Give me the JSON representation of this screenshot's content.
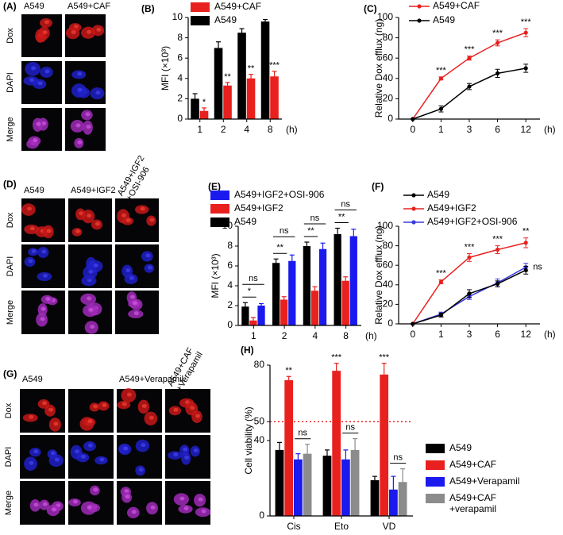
{
  "image_panels": [
    {
      "panel": "(A)",
      "columns": [
        "A549",
        "A549+CAF"
      ],
      "rows": [
        "Dox",
        "DAPI",
        "Merge"
      ]
    },
    {
      "panel": "(D)",
      "columns": [
        "A549",
        "A549+IGF2",
        "A549+IGF2\n+OSI-906"
      ],
      "rows": [
        "Dox",
        "DAPI",
        "Merge"
      ]
    },
    {
      "panel": "(G)",
      "columns": [
        "A549",
        null,
        "A549+Verapamil",
        "A549+CAF\n+Verapamil"
      ],
      "rows": [
        "Dox",
        "DAPI",
        "Merge"
      ]
    }
  ],
  "chart_data": [
    {
      "type": "bar",
      "panel": "(B)",
      "ylabel": "MFI (×10³)",
      "xlabel": "(h)",
      "categories": [
        "1",
        "2",
        "4",
        "8"
      ],
      "ylim": [
        0,
        10
      ],
      "yticks": [
        0,
        2,
        4,
        6,
        8,
        10
      ],
      "series": [
        {
          "name": "A549",
          "color": "#000000",
          "values": [
            2.0,
            7.0,
            8.5,
            9.6
          ],
          "errors": [
            0.5,
            0.6,
            0.4,
            0.2
          ]
        },
        {
          "name": "A549+CAF",
          "color": "#e8211f",
          "values": [
            0.8,
            3.3,
            4.0,
            4.2
          ],
          "errors": [
            0.3,
            0.3,
            0.4,
            0.5
          ],
          "significance": [
            "*",
            "**",
            "**",
            "***"
          ]
        }
      ]
    },
    {
      "type": "line",
      "panel": "(C)",
      "ylabel": "Relative Dox efflux (ng)",
      "xlabel": "(h)",
      "categories": [
        "0",
        "1",
        "3",
        "6",
        "12"
      ],
      "ylim": [
        0,
        100
      ],
      "yticks": [
        0,
        20,
        40,
        60,
        80,
        100
      ],
      "series": [
        {
          "name": "A549+CAF",
          "color": "#e8211f",
          "values": [
            0,
            40,
            60,
            75,
            85
          ],
          "errors": [
            0,
            1.5,
            2,
            3,
            4
          ],
          "significance": [
            null,
            "***",
            "***",
            "***",
            "***"
          ]
        },
        {
          "name": "A549",
          "color": "#000000",
          "values": [
            0,
            10,
            32,
            45,
            50
          ],
          "errors": [
            0,
            3,
            3,
            4,
            4
          ]
        }
      ]
    },
    {
      "type": "bar",
      "panel": "(E)",
      "ylabel": "MFI (×10³)",
      "xlabel": "(h)",
      "categories": [
        "1",
        "2",
        "4",
        "8"
      ],
      "ylim": [
        0,
        10
      ],
      "yticks": [
        0,
        2,
        4,
        6,
        8,
        10
      ],
      "series": [
        {
          "name": "A549",
          "color": "#000000",
          "values": [
            1.9,
            6.3,
            8.0,
            9.2
          ],
          "errors": [
            0.4,
            0.4,
            0.4,
            0.6
          ]
        },
        {
          "name": "A549+IGF2",
          "color": "#e8211f",
          "values": [
            0.5,
            2.6,
            3.5,
            4.5
          ],
          "errors": [
            0.3,
            0.3,
            0.4,
            0.4
          ]
        },
        {
          "name": "A549+IGF2+OSI-906",
          "color": "#1a1aee",
          "values": [
            2.0,
            6.5,
            7.7,
            9.0
          ],
          "errors": [
            0.2,
            0.6,
            0.6,
            0.7
          ]
        }
      ],
      "comparisons": [
        {
          "between": [
            "A549",
            "A549+IGF2"
          ],
          "labels": [
            "*",
            "**",
            "**",
            "**"
          ]
        },
        {
          "between": [
            "A549",
            "A549+IGF2+OSI-906"
          ],
          "labels": [
            "ns",
            "ns",
            "ns",
            "ns"
          ]
        }
      ]
    },
    {
      "type": "line",
      "panel": "(F)",
      "ylabel": "Relative Dox efflux (ng)",
      "xlabel": "(h)",
      "categories": [
        "0",
        "1",
        "3",
        "6",
        "12"
      ],
      "ylim": [
        0,
        100
      ],
      "yticks": [
        0,
        20,
        40,
        60,
        80,
        100
      ],
      "series": [
        {
          "name": "A549+IGF2+OSI-906",
          "color": "#3a3adf",
          "values": [
            0,
            10,
            28,
            42,
            58
          ],
          "errors": [
            0,
            2,
            3,
            4,
            4
          ],
          "significance": [
            null,
            null,
            null,
            null,
            "ns"
          ]
        },
        {
          "name": "A549+IGF2",
          "color": "#e8211f",
          "values": [
            0,
            43,
            68,
            76,
            83
          ],
          "errors": [
            0,
            2,
            4,
            4,
            5
          ],
          "significance": [
            null,
            "***",
            "***",
            "***",
            "**"
          ]
        },
        {
          "name": "A549",
          "color": "#000000",
          "values": [
            0,
            9,
            31,
            41,
            55
          ],
          "errors": [
            0,
            2,
            4,
            3,
            4
          ]
        }
      ]
    },
    {
      "type": "bar",
      "panel": "(H)",
      "ylabel": "Cell viability (%)",
      "categories": [
        "Cis",
        "Eto",
        "VD"
      ],
      "ylim": [
        0,
        80
      ],
      "yticks": [
        0,
        40,
        50,
        80
      ],
      "reference_line": {
        "value": 50,
        "color": "#e8211f"
      },
      "series": [
        {
          "name": "A549",
          "color": "#000000",
          "values": [
            35,
            32,
            19
          ],
          "errors": [
            4,
            3,
            2
          ]
        },
        {
          "name": "A549+CAF",
          "color": "#e8211f",
          "values": [
            72,
            77,
            75
          ],
          "errors": [
            2,
            4,
            6
          ],
          "significance": [
            "**",
            "***",
            "***"
          ]
        },
        {
          "name": "A549+Verapamil",
          "color": "#1a1aee",
          "values": [
            30,
            30,
            14
          ],
          "errors": [
            3,
            5,
            7
          ]
        },
        {
          "name": "A549+CAF\n+verapamil",
          "color": "#8c8c8c",
          "values": [
            33,
            35,
            18
          ],
          "errors": [
            5,
            6,
            7
          ]
        }
      ],
      "comparisons": [
        {
          "between": [
            "A549+Verapamil",
            "A549+CAF\n+verapamil"
          ],
          "labels": [
            "ns",
            "ns",
            "ns"
          ]
        }
      ]
    }
  ]
}
